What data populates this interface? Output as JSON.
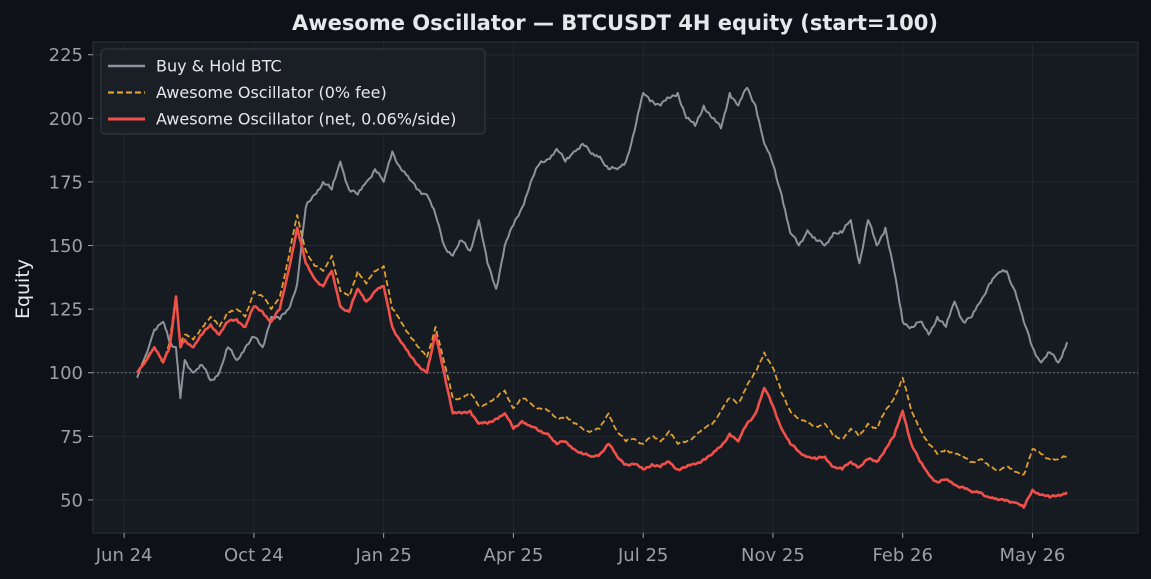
{
  "chart_data": {
    "type": "line",
    "title": "Awesome Oscillator — BTCUSDT 4H equity (start=100)",
    "xlabel": "",
    "ylabel": "Equity",
    "ylim": [
      37,
      230
    ],
    "yticks": [
      50,
      75,
      100,
      125,
      150,
      175,
      200,
      225
    ],
    "xticks": [
      {
        "label": "Jun 24",
        "x": 0
      },
      {
        "label": "Oct 24",
        "x": 3
      },
      {
        "label": "Jan 25",
        "x": 6
      },
      {
        "label": "Apr 25",
        "x": 9
      },
      {
        "label": "Jul 25",
        "x": 12
      },
      {
        "label": "Nov 25",
        "x": 15
      },
      {
        "label": "Feb 26",
        "x": 18
      },
      {
        "label": "May 26",
        "x": 21
      }
    ],
    "x_unit": "months since Jun 24 tick",
    "xlim": [
      -0.72,
      23.44
    ],
    "reference_line": {
      "y": 100,
      "style": "dotted"
    },
    "grid": true,
    "legend_position": "top-left",
    "colors": {
      "background": "#0e1117",
      "plot_background": "#161a21",
      "grid": "#222730",
      "buy_hold": "#8c939d",
      "gross": "#e0a030",
      "net": "#f0504a",
      "text": "#e6e8eb",
      "tick": "#9aa0a8"
    },
    "series": [
      {
        "name": "Buy & Hold BTC",
        "style": "solid",
        "x": [
          0.3,
          0.7,
          0.9,
          1.05,
          1.2,
          1.3,
          1.4,
          1.6,
          1.8,
          2.0,
          2.2,
          2.4,
          2.6,
          2.8,
          3.0,
          3.2,
          3.4,
          3.6,
          3.8,
          4.0,
          4.2,
          4.4,
          4.6,
          4.8,
          5.0,
          5.2,
          5.4,
          5.6,
          5.8,
          6.0,
          6.2,
          6.4,
          6.6,
          6.8,
          7.0,
          7.2,
          7.4,
          7.6,
          7.8,
          8.0,
          8.2,
          8.4,
          8.6,
          8.8,
          9.0,
          9.2,
          9.4,
          9.6,
          9.8,
          10.0,
          10.2,
          10.4,
          10.6,
          10.8,
          11.0,
          11.2,
          11.4,
          11.6,
          11.8,
          12.0,
          12.2,
          12.4,
          12.6,
          12.8,
          13.0,
          13.2,
          13.4,
          13.6,
          13.8,
          14.0,
          14.2,
          14.4,
          14.6,
          14.8,
          15.0,
          15.2,
          15.4,
          15.6,
          15.8,
          16.0,
          16.2,
          16.4,
          16.6,
          16.8,
          17.0,
          17.2,
          17.4,
          17.6,
          17.8,
          18.0,
          18.2,
          18.4,
          18.6,
          18.8,
          19.0,
          19.2,
          19.4,
          19.6,
          19.8,
          20.0,
          20.2,
          20.4,
          20.6,
          20.8,
          21.0,
          21.2,
          21.4,
          21.6,
          21.8
        ],
        "values": [
          98,
          117,
          120,
          112,
          110,
          90,
          105,
          100,
          103,
          97,
          100,
          110,
          105,
          110,
          114,
          110,
          122,
          121,
          125,
          135,
          165,
          170,
          175,
          172,
          183,
          172,
          170,
          175,
          180,
          175,
          187,
          180,
          176,
          172,
          170,
          162,
          150,
          146,
          152,
          148,
          160,
          143,
          133,
          150,
          158,
          165,
          175,
          182,
          184,
          188,
          183,
          187,
          190,
          186,
          185,
          180,
          180,
          183,
          195,
          210,
          207,
          205,
          208,
          210,
          200,
          197,
          205,
          200,
          196,
          210,
          205,
          212,
          205,
          190,
          182,
          170,
          155,
          150,
          156,
          152,
          150,
          155,
          155,
          160,
          143,
          160,
          150,
          157,
          140,
          120,
          118,
          120,
          115,
          122,
          118,
          128,
          120,
          122,
          128,
          135,
          139,
          140,
          132,
          120,
          110,
          104,
          108,
          104,
          112
        ]
      },
      {
        "name": "Awesome Oscillator (0% fee)",
        "style": "dashed",
        "x": [
          0.3,
          0.7,
          0.9,
          1.05,
          1.2,
          1.3,
          1.4,
          1.6,
          1.8,
          2.0,
          2.2,
          2.4,
          2.6,
          2.8,
          3.0,
          3.2,
          3.4,
          3.6,
          3.8,
          4.0,
          4.2,
          4.4,
          4.6,
          4.8,
          5.0,
          5.2,
          5.4,
          5.6,
          5.8,
          6.0,
          6.2,
          6.4,
          6.6,
          6.8,
          7.0,
          7.2,
          7.4,
          7.6,
          7.8,
          8.0,
          8.2,
          8.4,
          8.6,
          8.8,
          9.0,
          9.2,
          9.4,
          9.6,
          9.8,
          10.0,
          10.2,
          10.4,
          10.6,
          10.8,
          11.0,
          11.2,
          11.4,
          11.6,
          11.8,
          12.0,
          12.2,
          12.4,
          12.6,
          12.8,
          13.0,
          13.2,
          13.4,
          13.6,
          13.8,
          14.0,
          14.2,
          14.4,
          14.6,
          14.8,
          15.0,
          15.2,
          15.4,
          15.6,
          15.8,
          16.0,
          16.2,
          16.4,
          16.6,
          16.8,
          17.0,
          17.2,
          17.4,
          17.6,
          17.8,
          18.0,
          18.2,
          18.4,
          18.6,
          18.8,
          19.0,
          19.2,
          19.4,
          19.6,
          19.8,
          20.0,
          20.2,
          20.4,
          20.6,
          20.8,
          21.0,
          21.2,
          21.4,
          21.6,
          21.8
        ],
        "values": [
          100,
          110,
          104,
          112,
          130,
          112,
          115,
          113,
          118,
          122,
          118,
          124,
          125,
          122,
          132,
          130,
          125,
          130,
          145,
          162,
          148,
          142,
          140,
          146,
          132,
          130,
          140,
          135,
          140,
          142,
          125,
          120,
          115,
          110,
          106,
          118,
          104,
          90,
          90,
          92,
          87,
          88,
          90,
          93,
          86,
          90,
          88,
          86,
          85,
          82,
          83,
          80,
          78,
          77,
          78,
          84,
          77,
          73,
          74,
          72,
          75,
          73,
          77,
          72,
          73,
          75,
          78,
          80,
          85,
          90,
          88,
          95,
          100,
          108,
          102,
          92,
          85,
          82,
          80,
          79,
          80,
          75,
          74,
          78,
          75,
          80,
          78,
          85,
          90,
          98,
          85,
          78,
          72,
          68,
          70,
          68,
          67,
          65,
          66,
          63,
          62,
          63,
          61,
          60,
          70,
          68,
          66,
          66,
          67
        ]
      },
      {
        "name": "Awesome Oscillator (net, 0.06%/side)",
        "style": "solid",
        "x": [
          0.3,
          0.7,
          0.9,
          1.05,
          1.2,
          1.3,
          1.4,
          1.6,
          1.8,
          2.0,
          2.2,
          2.4,
          2.6,
          2.8,
          3.0,
          3.2,
          3.4,
          3.6,
          3.8,
          4.0,
          4.2,
          4.4,
          4.6,
          4.8,
          5.0,
          5.2,
          5.4,
          5.6,
          5.8,
          6.0,
          6.2,
          6.4,
          6.6,
          6.8,
          7.0,
          7.2,
          7.4,
          7.6,
          7.8,
          8.0,
          8.2,
          8.4,
          8.6,
          8.8,
          9.0,
          9.2,
          9.4,
          9.6,
          9.8,
          10.0,
          10.2,
          10.4,
          10.6,
          10.8,
          11.0,
          11.2,
          11.4,
          11.6,
          11.8,
          12.0,
          12.2,
          12.4,
          12.6,
          12.8,
          13.0,
          13.2,
          13.4,
          13.6,
          13.8,
          14.0,
          14.2,
          14.4,
          14.6,
          14.8,
          15.0,
          15.2,
          15.4,
          15.6,
          15.8,
          16.0,
          16.2,
          16.4,
          16.6,
          16.8,
          17.0,
          17.2,
          17.4,
          17.6,
          17.8,
          18.0,
          18.2,
          18.4,
          18.6,
          18.8,
          19.0,
          19.2,
          19.4,
          19.6,
          19.8,
          20.0,
          20.2,
          20.4,
          20.6,
          20.8,
          21.0,
          21.2,
          21.4,
          21.6,
          21.8
        ],
        "values": [
          100,
          110,
          104,
          110,
          130,
          110,
          113,
          110,
          115,
          119,
          115,
          120,
          121,
          118,
          126,
          124,
          120,
          125,
          140,
          157,
          143,
          137,
          134,
          140,
          126,
          124,
          133,
          128,
          132,
          134,
          118,
          112,
          107,
          103,
          100,
          115,
          100,
          84,
          84,
          85,
          80,
          80,
          82,
          84,
          78,
          81,
          79,
          77,
          76,
          72,
          73,
          70,
          68,
          67,
          68,
          72,
          67,
          64,
          64,
          62,
          64,
          63,
          65,
          62,
          63,
          64,
          66,
          68,
          71,
          76,
          73,
          80,
          84,
          94,
          87,
          78,
          72,
          69,
          67,
          66,
          67,
          63,
          62,
          65,
          63,
          66,
          65,
          70,
          75,
          85,
          72,
          65,
          60,
          57,
          58,
          56,
          55,
          53,
          53,
          51,
          50,
          50,
          49,
          47,
          54,
          52,
          51,
          52,
          53
        ]
      }
    ]
  }
}
